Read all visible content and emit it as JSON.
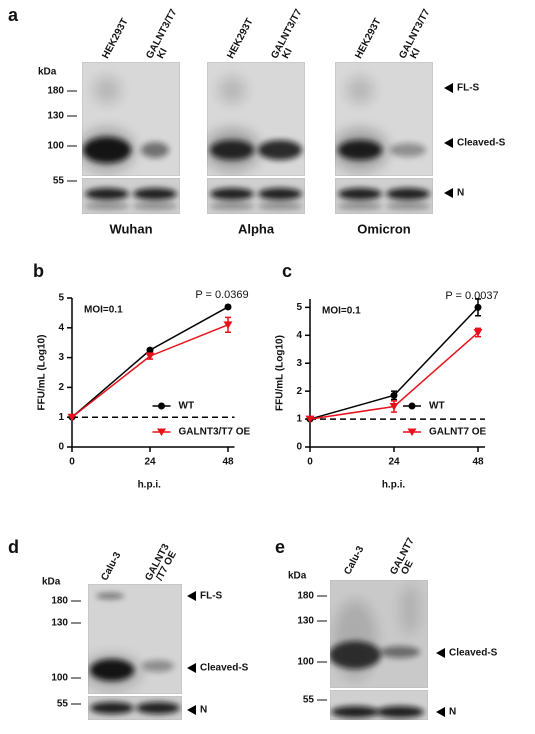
{
  "panel_a": {
    "label": "a",
    "kda": "kDa",
    "markers": [
      "180",
      "130",
      "100",
      "55"
    ],
    "lanes": [
      [
        "HEK293T"
      ],
      [
        "GALNT3/T7",
        "KI"
      ]
    ],
    "bands": [
      "FL-S",
      "Cleaved-S",
      "N"
    ],
    "blots": [
      "Wuhan",
      "Alpha",
      "Omicron"
    ]
  },
  "panel_d": {
    "label": "d",
    "kda": "kDa",
    "markers": [
      "180",
      "130",
      "100",
      "55"
    ],
    "lanes": [
      [
        "Calu-3"
      ],
      [
        "GALNT3",
        "/T7 OE"
      ]
    ],
    "bands": [
      "FL-S",
      "Cleaved-S",
      "N"
    ]
  },
  "panel_e": {
    "label": "e",
    "kda": "kDa",
    "markers": [
      "180",
      "130",
      "100",
      "55"
    ],
    "lanes": [
      [
        "Calu-3"
      ],
      [
        "GALNT7",
        "OE"
      ]
    ],
    "bands": [
      "Cleaved-S",
      "N"
    ]
  },
  "chart_data": [
    {
      "type": "line",
      "panel": "b",
      "x_label": "h.p.i.",
      "y_label": "FFU/mL (Log10)",
      "annotations": [
        "MOI=0.1",
        "P = 0.0369"
      ],
      "x": [
        0,
        24,
        48
      ],
      "xlim": [
        0,
        50
      ],
      "xticks": [
        0,
        24,
        48
      ],
      "ylim": [
        0,
        5
      ],
      "yticks": [
        0,
        1,
        2,
        3,
        4,
        5
      ],
      "reference_line": 1,
      "legend": "lower right",
      "series": [
        {
          "name": "WT",
          "color": "#000000",
          "marker": "circle",
          "values": [
            1,
            3.25,
            4.7
          ],
          "errors": [
            0,
            0.05,
            0.05
          ]
        },
        {
          "name": "GALNT3/T7 OE",
          "color": "#e8111b",
          "marker": "triangle",
          "values": [
            1,
            3.05,
            4.1
          ],
          "errors": [
            0,
            0.1,
            0.25
          ]
        }
      ]
    },
    {
      "type": "line",
      "panel": "c",
      "x_label": "h.p.i.",
      "y_label": "FFU/mL (Log10)",
      "annotations": [
        "MOI=0.1",
        "P = 0.0037"
      ],
      "x": [
        0,
        24,
        48
      ],
      "xlim": [
        0,
        50
      ],
      "xticks": [
        0,
        24,
        48
      ],
      "ylim": [
        0,
        5.3
      ],
      "yticks": [
        0,
        1,
        2,
        3,
        4,
        5
      ],
      "reference_line": 1,
      "legend": "lower right",
      "series": [
        {
          "name": "WT",
          "color": "#000000",
          "marker": "circle",
          "values": [
            1,
            1.85,
            5.0
          ],
          "errors": [
            0,
            0.15,
            0.3
          ]
        },
        {
          "name": "GALNT7 OE",
          "color": "#e8111b",
          "marker": "triangle",
          "values": [
            1,
            1.45,
            4.1
          ],
          "errors": [
            0,
            0.2,
            0.15
          ]
        }
      ]
    }
  ]
}
